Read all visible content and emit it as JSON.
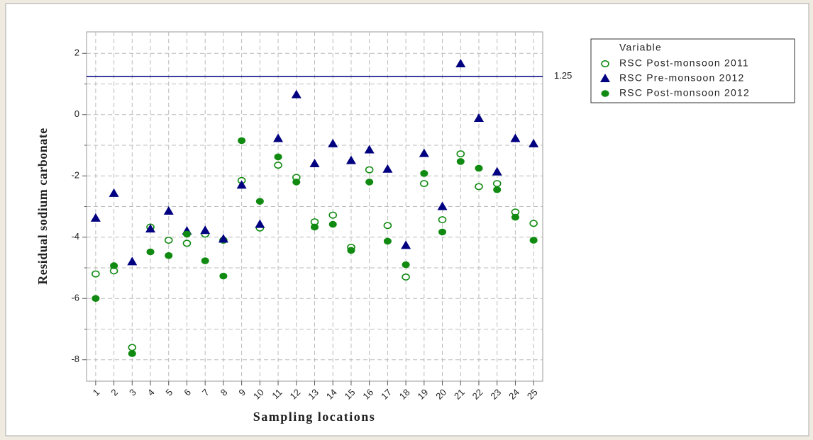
{
  "chart_data": {
    "type": "scatter",
    "x_label": "Sampling locations",
    "y_label": "Residual sodium carbonate",
    "categories": [
      "1",
      "2",
      "3",
      "4",
      "5",
      "6",
      "7",
      "8",
      "9",
      "10",
      "11",
      "12",
      "13",
      "14",
      "15",
      "16",
      "17",
      "18",
      "19",
      "20",
      "21",
      "22",
      "23",
      "24",
      "25"
    ],
    "ylim": [
      -8.7,
      2.7
    ],
    "yticks": [
      -8,
      -6,
      -4,
      -2,
      0,
      2
    ],
    "y_minor_ticks": [
      -7,
      -5,
      -3,
      -1,
      1
    ],
    "grid": true,
    "legend_title": "Variable",
    "legend_position": "right",
    "reference_line": {
      "value": 1.25,
      "color": "#000080"
    },
    "series": [
      {
        "name": "RSC Post-monsoon 2011",
        "color": "#108a10",
        "marker": "open-circle",
        "values": [
          -5.2,
          -5.1,
          -7.6,
          -3.67,
          -4.1,
          -4.2,
          -3.9,
          -4.1,
          -2.15,
          -3.7,
          -1.65,
          -2.05,
          -3.5,
          -3.28,
          -4.33,
          -1.8,
          -3.62,
          -5.3,
          -2.25,
          -3.43,
          -1.28,
          -2.35,
          -2.25,
          -3.18,
          -3.55
        ]
      },
      {
        "name": "RSC Pre-monsoon 2012",
        "color": "#000080",
        "marker": "triangle",
        "values": [
          -3.38,
          -2.57,
          -4.8,
          -3.73,
          -3.15,
          -3.8,
          -3.78,
          -4.06,
          -2.3,
          -3.58,
          -0.78,
          0.65,
          -1.6,
          -0.95,
          -1.5,
          -1.15,
          -1.78,
          -4.27,
          -1.27,
          -3.0,
          1.66,
          -0.12,
          -1.87,
          -0.78,
          -0.95
        ]
      },
      {
        "name": "RSC Post-monsoon 2012",
        "color": "#108a10",
        "marker": "circle",
        "values": [
          -6.0,
          -4.93,
          -7.8,
          -4.48,
          -4.6,
          -3.9,
          -4.77,
          -5.27,
          -0.85,
          -2.83,
          -1.38,
          -2.2,
          -3.67,
          -3.58,
          -4.43,
          -2.2,
          -4.13,
          -4.9,
          -1.92,
          -3.83,
          -1.53,
          -1.75,
          -2.45,
          -3.35,
          -4.1
        ]
      }
    ]
  }
}
